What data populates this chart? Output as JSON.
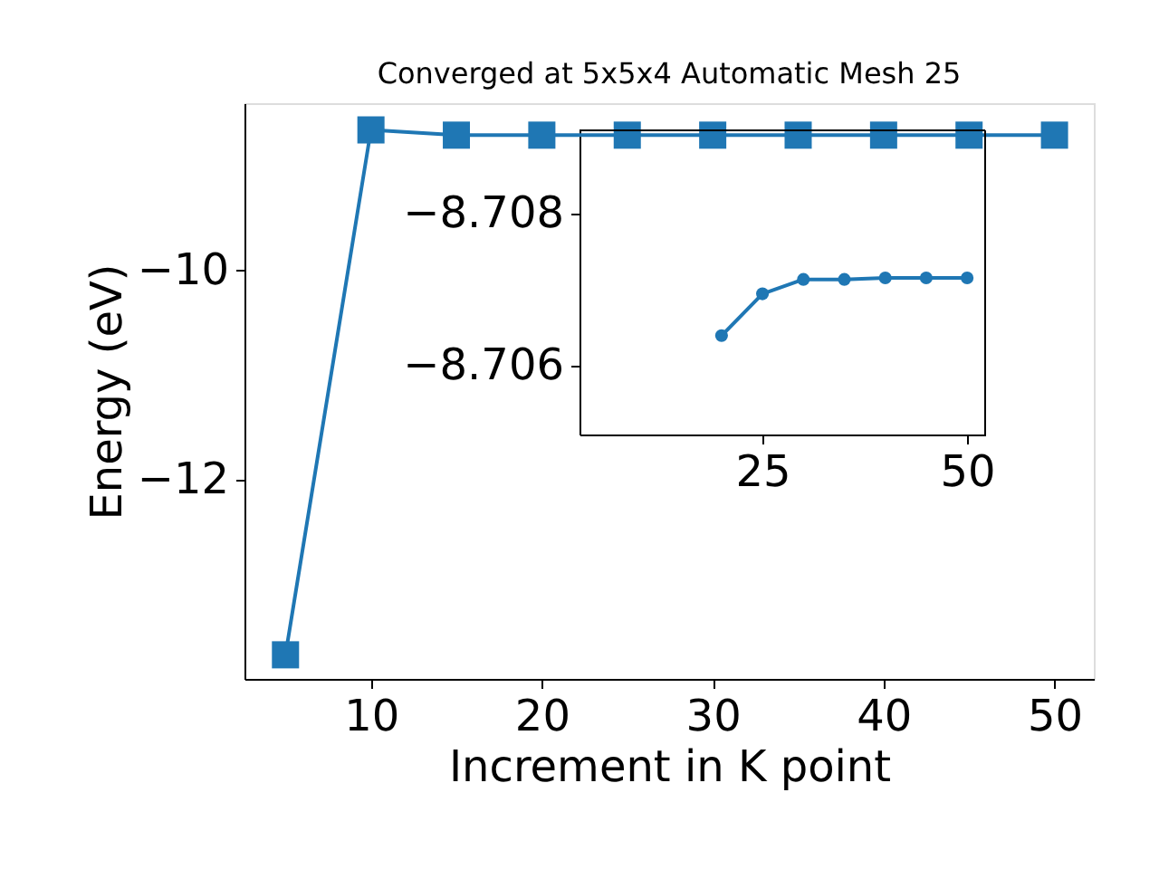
{
  "chart_data": [
    {
      "type": "line",
      "title": "Converged at 5x5x4 Automatic Mesh 25",
      "xlabel": "Increment in K point",
      "ylabel": "Energy (eV)",
      "marker": "square",
      "color": "#1f77b4",
      "x": [
        5,
        10,
        15,
        20,
        25,
        30,
        35,
        40,
        45,
        50
      ],
      "values": [
        -13.67,
        -8.66,
        -8.71,
        -8.71,
        -8.71,
        -8.71,
        -8.71,
        -8.71,
        -8.71,
        -8.71
      ],
      "xlim": [
        2.6,
        52.3
      ],
      "ylim": [
        -13.9,
        -8.405
      ],
      "xticks": [
        10,
        20,
        30,
        40,
        50
      ],
      "yticks": [
        -12,
        -10
      ]
    },
    {
      "type": "line",
      "marker": "circle",
      "color": "#1f77b4",
      "x": [
        20,
        25,
        30,
        35,
        40,
        45,
        50
      ],
      "values": [
        -8.7064,
        -8.70695,
        -8.70714,
        -8.70714,
        -8.70716,
        -8.70716,
        -8.70716
      ],
      "xlim": [
        2.65,
        52.2
      ],
      "ylim": [
        -8.7051,
        -8.7091
      ],
      "xticks": [
        25,
        50
      ],
      "yticks": [
        -8.708,
        -8.706
      ]
    }
  ]
}
